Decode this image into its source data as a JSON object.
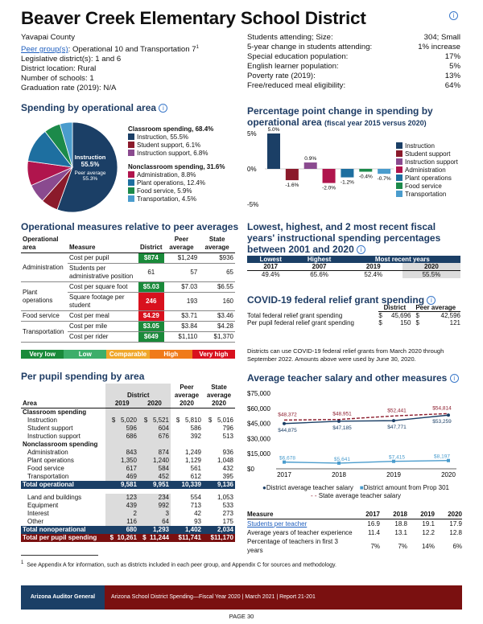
{
  "title": "Beaver Creek Elementary School District",
  "info_glyph": "i",
  "header_left": [
    {
      "text": "Yavapai County"
    },
    {
      "link": "Peer group(s)",
      "text": ":  Operational 10 and Transportation 7",
      "sup": "1"
    },
    {
      "text": "Legislative district(s):  1 and 6"
    },
    {
      "text": "District location:  Rural"
    },
    {
      "text": "Number of schools:  1"
    },
    {
      "text": "Graduation rate (2019):  N/A"
    }
  ],
  "header_right": [
    {
      "label": "Students attending; Size:",
      "value": "304; Small"
    },
    {
      "label": "5-year change in students attending:",
      "value": "1% increase"
    },
    {
      "label": "Special education population:",
      "value": "17%"
    },
    {
      "label": "English learner population:",
      "value": "5%"
    },
    {
      "label": "Poverty rate (2019):",
      "value": "13%"
    },
    {
      "label": "Free/reduced meal eligibility:",
      "value": "64%"
    }
  ],
  "spending_by_area": {
    "title": "Spending by operational area",
    "pie_center_label": "Instruction",
    "pie_center_value": "55.5%",
    "pie_peer_label": "Peer average",
    "pie_peer_value": "55.3%",
    "classroom_heading": "Classroom spending, 68.4%",
    "classroom_items": [
      {
        "label": "Instruction, 55.5%",
        "color": "#1b3f66"
      },
      {
        "label": "Student support, 6.1%",
        "color": "#8b1a2b"
      },
      {
        "label": "Instruction support, 6.8%",
        "color": "#8a4a8f"
      }
    ],
    "nonclassroom_heading": "Nonclassroom spending, 31.6%",
    "nonclassroom_items": [
      {
        "label": "Administration, 8.8%",
        "color": "#b0154d"
      },
      {
        "label": "Plant operations, 12.4%",
        "color": "#1e6fa0"
      },
      {
        "label": "Food service, 5.9%",
        "color": "#1c8a4a"
      },
      {
        "label": "Transportation, 4.5%",
        "color": "#4a9ccd"
      }
    ],
    "chart_data": {
      "type": "pie",
      "categories": [
        "Instruction",
        "Student support",
        "Instruction support",
        "Administration",
        "Plant operations",
        "Food service",
        "Transportation"
      ],
      "values": [
        55.5,
        6.1,
        6.8,
        8.8,
        12.4,
        5.9,
        4.5
      ],
      "colors": [
        "#1b3f66",
        "#8b1a2b",
        "#8a4a8f",
        "#b0154d",
        "#1e6fa0",
        "#1c8a4a",
        "#4a9ccd"
      ]
    }
  },
  "pp_change": {
    "title": "Percentage point change in spending by operational area",
    "subtitle": "(fiscal year 2015 versus 2020)",
    "chart_data": {
      "type": "bar",
      "categories": [
        "Instruction",
        "Student support",
        "Instruction support",
        "Administration",
        "Plant operations",
        "Food service",
        "Transportation"
      ],
      "values": [
        5.0,
        -1.6,
        0.9,
        -2.0,
        -1.2,
        -0.4,
        -0.7
      ],
      "value_labels": [
        "5.0%",
        "-1.6%",
        "0.9%",
        "-2.0%",
        "-1.2%",
        "-0.4%",
        "-0.7%"
      ],
      "colors": [
        "#1b3f66",
        "#8b1a2b",
        "#8a4a8f",
        "#b0154d",
        "#1e6fa0",
        "#1c8a4a",
        "#4a9ccd"
      ],
      "yticks": [
        "5%",
        "0%",
        "-5%"
      ],
      "ylim": [
        -5,
        5
      ]
    }
  },
  "operational_measures": {
    "title": "Operational measures relative to peer averages",
    "headers": [
      "Operational area",
      "Measure",
      "District",
      "Peer average",
      "State average"
    ],
    "groups": [
      {
        "area": "Administration",
        "rows": [
          {
            "measure": "Cost per pupil",
            "district": "$874",
            "peer": "$1,249",
            "state": "$936",
            "color": "#1a8a3a"
          },
          {
            "measure": "Students per administrative position",
            "district": "61",
            "peer": "57",
            "state": "65",
            "color": ""
          }
        ]
      },
      {
        "area": "Plant operations",
        "rows": [
          {
            "measure": "Cost per square foot",
            "district": "$5.03",
            "peer": "$7.03",
            "state": "$6.55",
            "color": "#1a8a3a"
          },
          {
            "measure": "Square footage per student",
            "district": "246",
            "peer": "193",
            "state": "160",
            "color": "#d8111e"
          }
        ]
      },
      {
        "area": "Food service",
        "rows": [
          {
            "measure": "Cost per meal",
            "district": "$4.29",
            "peer": "$3.71",
            "state": "$3.46",
            "color": "#d8111e"
          }
        ]
      },
      {
        "area": "Transportation",
        "rows": [
          {
            "measure": "Cost per mile",
            "district": "$3.05",
            "peer": "$3.84",
            "state": "$4.28",
            "color": "#1a8a3a"
          },
          {
            "measure": "Cost per rider",
            "district": "$649",
            "peer": "$1,110",
            "state": "$1,370",
            "color": "#1a8a3a"
          }
        ]
      }
    ],
    "scale": [
      {
        "label": "Very low",
        "color": "#1a8a3a"
      },
      {
        "label": "Low",
        "color": "#3dae6a"
      },
      {
        "label": "Comparable",
        "color": "#f0a72a"
      },
      {
        "label": "High",
        "color": "#f07a1a"
      },
      {
        "label": "Very high",
        "color": "#d8111e"
      }
    ]
  },
  "per_pupil": {
    "title": "Per pupil spending by area",
    "col_district": "District",
    "col_peer": "Peer average",
    "col_state": "State average",
    "col_area": "Area",
    "col_2019": "2019",
    "col_2020": "2020",
    "col_peer_yr": "2020",
    "col_state_yr": "2020",
    "rows": [
      {
        "type": "head",
        "label": "Classroom spending"
      },
      {
        "type": "row",
        "label": "Instruction",
        "d19": "$   5,020",
        "d20": "$   5,521",
        "peer": "$   5,810",
        "state": "$   5,016"
      },
      {
        "type": "row",
        "label": "Student support",
        "d19": "596",
        "d20": "604",
        "peer": "586",
        "state": "796"
      },
      {
        "type": "row",
        "label": "Instruction support",
        "d19": "686",
        "d20": "676",
        "peer": "392",
        "state": "513"
      },
      {
        "type": "head",
        "label": "Nonclassroom spending"
      },
      {
        "type": "row",
        "label": "Administration",
        "d19": "843",
        "d20": "874",
        "peer": "1,249",
        "state": "936"
      },
      {
        "type": "row",
        "label": "Plant operations",
        "d19": "1,350",
        "d20": "1,240",
        "peer": "1,129",
        "state": "1,048"
      },
      {
        "type": "row",
        "label": "Food service",
        "d19": "617",
        "d20": "584",
        "peer": "561",
        "state": "432"
      },
      {
        "type": "row",
        "label": "Transportation",
        "d19": "469",
        "d20": "452",
        "peer": "612",
        "state": "395"
      },
      {
        "type": "total",
        "label": "Total operational",
        "d19": "9,581",
        "d20": "9,951",
        "peer": "10,339",
        "state": "9,136"
      },
      {
        "type": "gap"
      },
      {
        "type": "row",
        "label": "Land and buildings",
        "d19": "123",
        "d20": "234",
        "peer": "554",
        "state": "1,053"
      },
      {
        "type": "row",
        "label": "Equipment",
        "d19": "439",
        "d20": "992",
        "peer": "713",
        "state": "533"
      },
      {
        "type": "row",
        "label": "Interest",
        "d19": "2",
        "d20": "3",
        "peer": "42",
        "state": "273"
      },
      {
        "type": "row",
        "label": "Other",
        "d19": "116",
        "d20": "64",
        "peer": "93",
        "state": "175"
      },
      {
        "type": "total",
        "label": "Total nonoperational",
        "d19": "680",
        "d20": "1,293",
        "peer": "1,402",
        "state": "2,034"
      },
      {
        "type": "grand",
        "label": "Total per pupil spending",
        "d19": "$  10,261",
        "d20": "$  11,244",
        "peer": "$11,741",
        "state": "$11,170"
      }
    ]
  },
  "lowest_highest": {
    "title": "Lowest, highest, and 2 most recent fiscal years' instructional spending percentages between 2001 and 2020",
    "headers": [
      "Lowest",
      "Highest",
      "Most recent years"
    ],
    "years": [
      "2017",
      "2007",
      "2019",
      "2020"
    ],
    "values": [
      "49.4%",
      "65.6%",
      "52.4%",
      "55.5%"
    ]
  },
  "covid": {
    "title": "COVID-19 federal relief grant spending",
    "col_district": "District",
    "col_peer": "Peer average",
    "rows": [
      {
        "label": "Total federal relief grant spending",
        "district": "45,696",
        "peer": "42,596"
      },
      {
        "label": "Per pupil federal relief grant spending",
        "district": "150",
        "peer": "121"
      }
    ],
    "note": "Districts can use COVID-19 federal relief grants from March 2020 through September 2022. Amounts above were used by June 30, 2020."
  },
  "teacher": {
    "title": "Average teacher salary and other measures",
    "chart_data": {
      "type": "line",
      "x": [
        "2017",
        "2018",
        "2019",
        "2020"
      ],
      "series": [
        {
          "name": "District average teacher salary",
          "values": [
            44875,
            47185,
            47771,
            53259
          ],
          "labels": [
            "$44,875",
            "$47,185",
            "$47,771",
            "$53,259"
          ],
          "color": "#1b3f66"
        },
        {
          "name": "District amount from Prop 301",
          "values": [
            6678,
            5641,
            7415,
            8197
          ],
          "labels": [
            "$6,678",
            "$5,641",
            "$7,415",
            "$8,197"
          ],
          "color": "#4a9ccd"
        },
        {
          "name": "State average teacher salary",
          "values": [
            48372,
            48951,
            52441,
            54814
          ],
          "labels": [
            "$48,372",
            "$48,951",
            "$52,441",
            "$54,814"
          ],
          "color": "#8b1a2b"
        }
      ],
      "yticks": [
        "$75,000",
        "$60,000",
        "$45,000",
        "$30,000",
        "$15,000",
        "$0"
      ],
      "ylim": [
        0,
        75000
      ]
    },
    "measure_header": "Measure",
    "years": [
      "2017",
      "2018",
      "2019",
      "2020"
    ],
    "measures": [
      {
        "label": "Students per teacher",
        "link": true,
        "vals": [
          "16.9",
          "18.8",
          "19.1",
          "17.9"
        ]
      },
      {
        "label": "Average years of teacher experience",
        "link": false,
        "vals": [
          "11.4",
          "13.1",
          "12.2",
          "12.8"
        ]
      },
      {
        "label": "Percentage of teachers in first 3 years",
        "link": false,
        "vals": [
          "7%",
          "7%",
          "14%",
          "6%"
        ]
      }
    ]
  },
  "footnote_sup": "1",
  "footnote": "See Appendix A for information, such as districts included in each peer group, and Appendix C for sources and methodology.",
  "footer_left": "Arizona Auditor General",
  "footer_right": "Arizona School District Spending—Fiscal Year 2020  |  March 2021  |  Report 21-201",
  "page": "PAGE 30"
}
